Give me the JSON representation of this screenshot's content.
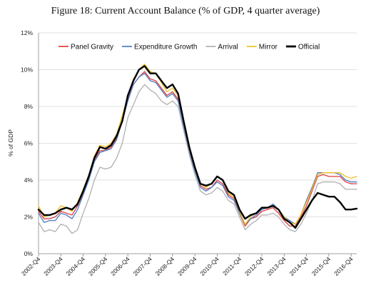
{
  "figure_title": "Figure 18:  Current Account Balance (% of GDP, 4 quarter average)",
  "chart_data": {
    "type": "line",
    "title": "",
    "xlabel": "",
    "ylabel": "% of GDP",
    "ylim": [
      0,
      12
    ],
    "ytick_labels": [
      "0%",
      "2%",
      "4%",
      "6%",
      "8%",
      "10%",
      "12%"
    ],
    "yticks": [
      0,
      2,
      4,
      6,
      8,
      10,
      12
    ],
    "grid": "horizontal",
    "legend_position": "top",
    "x_tick_labels": [
      "2002-Q4",
      "2003-Q4",
      "2004-Q4",
      "2005-Q4",
      "2006-Q4",
      "2007-Q4",
      "2008-Q4",
      "2009-Q4",
      "2010-Q4",
      "2011-Q4",
      "2012-Q4",
      "2013-Q4",
      "2014-Q4",
      "2015-Q4",
      "2016-Q4"
    ],
    "x_tick_positions": [
      0,
      4,
      8,
      12,
      16,
      20,
      24,
      28,
      32,
      36,
      40,
      44,
      48,
      52,
      56
    ],
    "x": [
      "2002-Q3",
      "2002-Q4",
      "2003-Q1",
      "2003-Q2",
      "2003-Q3",
      "2003-Q4",
      "2004-Q1",
      "2004-Q2",
      "2004-Q3",
      "2004-Q4",
      "2005-Q1",
      "2005-Q2",
      "2005-Q3",
      "2005-Q4",
      "2006-Q1",
      "2006-Q2",
      "2006-Q3",
      "2006-Q4",
      "2007-Q1",
      "2007-Q2",
      "2007-Q3",
      "2007-Q4",
      "2008-Q1",
      "2008-Q2",
      "2008-Q3",
      "2008-Q4",
      "2009-Q1",
      "2009-Q2",
      "2009-Q3",
      "2009-Q4",
      "2010-Q1",
      "2010-Q2",
      "2010-Q3",
      "2010-Q4",
      "2011-Q1",
      "2011-Q2",
      "2011-Q3",
      "2011-Q4",
      "2012-Q1",
      "2012-Q2",
      "2012-Q3",
      "2012-Q4",
      "2013-Q1",
      "2013-Q2",
      "2013-Q3",
      "2013-Q4",
      "2014-Q1",
      "2014-Q2",
      "2014-Q3",
      "2014-Q4",
      "2015-Q1",
      "2015-Q2",
      "2015-Q3",
      "2015-Q4",
      "2016-Q1",
      "2016-Q2",
      "2016-Q3",
      "2016-Q4"
    ],
    "series": [
      {
        "name": "Panel Gravity",
        "color": "#e03c3c",
        "width": 1.3,
        "values": [
          2.3,
          1.9,
          1.9,
          2.0,
          2.3,
          2.2,
          2.1,
          2.6,
          3.3,
          4.1,
          5.1,
          5.6,
          5.6,
          5.8,
          6.3,
          7.3,
          8.4,
          9.2,
          9.6,
          9.9,
          9.5,
          9.4,
          9.0,
          8.6,
          8.8,
          8.4,
          7.0,
          5.6,
          4.6,
          3.7,
          3.5,
          3.6,
          4.0,
          3.8,
          3.2,
          3.0,
          2.2,
          1.5,
          1.9,
          2.0,
          2.3,
          2.4,
          2.5,
          2.2,
          1.8,
          1.5,
          1.5,
          2.0,
          2.6,
          3.4,
          4.2,
          4.3,
          4.2,
          4.2,
          4.2,
          3.9,
          3.8,
          3.8
        ]
      },
      {
        "name": "Expenditure Growth",
        "color": "#4a7bc8",
        "width": 1.3,
        "values": [
          2.2,
          1.7,
          1.8,
          1.8,
          2.2,
          2.1,
          1.9,
          2.4,
          3.2,
          4.0,
          5.0,
          5.5,
          5.6,
          5.7,
          6.2,
          7.2,
          8.3,
          9.2,
          9.6,
          9.8,
          9.4,
          9.3,
          8.9,
          8.5,
          8.7,
          8.3,
          6.9,
          5.5,
          4.5,
          3.6,
          3.4,
          3.6,
          3.9,
          3.7,
          3.1,
          2.9,
          2.2,
          1.6,
          1.9,
          2.1,
          2.4,
          2.5,
          2.7,
          2.4,
          2.0,
          1.8,
          1.6,
          2.1,
          2.9,
          3.6,
          4.4,
          4.4,
          4.4,
          4.4,
          4.3,
          4.0,
          3.9,
          3.9
        ]
      },
      {
        "name": "Arrival",
        "color": "#b0b0b0",
        "width": 1.3,
        "values": [
          1.7,
          1.2,
          1.3,
          1.2,
          1.6,
          1.5,
          1.1,
          1.3,
          2.2,
          3.0,
          4.0,
          4.7,
          4.6,
          4.7,
          5.2,
          6.0,
          7.4,
          8.1,
          8.8,
          9.2,
          8.9,
          8.7,
          8.3,
          8.1,
          8.3,
          8.0,
          6.7,
          5.4,
          4.3,
          3.4,
          3.2,
          3.3,
          3.6,
          3.4,
          2.9,
          2.7,
          2.0,
          1.3,
          1.6,
          1.8,
          2.1,
          2.1,
          2.2,
          2.0,
          1.6,
          1.3,
          1.2,
          1.6,
          2.2,
          2.9,
          3.8,
          3.9,
          3.9,
          3.9,
          3.8,
          3.5,
          3.5,
          3.5
        ]
      },
      {
        "name": "Mirror",
        "color": "#f0c020",
        "width": 1.3,
        "values": [
          2.6,
          2.0,
          2.1,
          2.2,
          2.6,
          2.5,
          2.3,
          2.8,
          3.5,
          4.3,
          5.3,
          5.9,
          5.8,
          6.0,
          6.5,
          7.5,
          8.6,
          9.5,
          10.0,
          10.3,
          9.9,
          9.8,
          9.3,
          8.8,
          9.0,
          8.6,
          7.2,
          5.8,
          4.8,
          3.8,
          3.6,
          3.8,
          4.2,
          4.0,
          3.3,
          3.1,
          2.3,
          1.6,
          2.0,
          2.2,
          2.5,
          2.5,
          2.6,
          2.4,
          2.0,
          1.7,
          1.6,
          2.1,
          2.8,
          3.5,
          4.3,
          4.4,
          4.4,
          4.4,
          4.4,
          4.2,
          4.1,
          4.2
        ]
      },
      {
        "name": "Official",
        "color": "#000000",
        "width": 2.4,
        "values": [
          2.4,
          2.1,
          2.1,
          2.2,
          2.4,
          2.5,
          2.4,
          2.7,
          3.4,
          4.2,
          5.2,
          5.8,
          5.7,
          5.9,
          6.4,
          7.2,
          8.6,
          9.4,
          10.0,
          10.2,
          9.8,
          9.8,
          9.4,
          9.0,
          9.2,
          8.7,
          7.2,
          5.8,
          4.7,
          3.8,
          3.7,
          3.8,
          4.2,
          4.0,
          3.4,
          3.2,
          2.4,
          1.9,
          2.1,
          2.2,
          2.5,
          2.5,
          2.6,
          2.4,
          1.9,
          1.7,
          1.4,
          1.9,
          2.4,
          2.9,
          3.3,
          3.2,
          3.1,
          3.1,
          2.8,
          2.4,
          2.4,
          2.45
        ]
      }
    ]
  }
}
